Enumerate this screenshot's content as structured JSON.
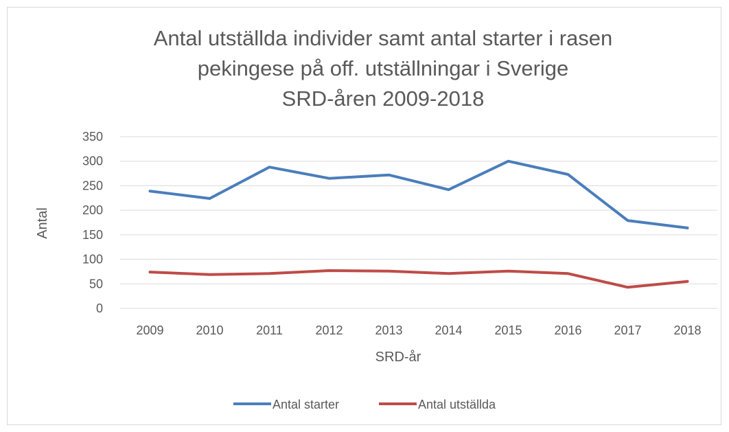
{
  "chart_data": {
    "type": "line",
    "title": [
      "Antal utställda individer samt antal starter i rasen",
      "pekingese på off. utställningar i Sverige",
      "SRD-åren 2009-2018"
    ],
    "x_label": "SRD-år",
    "y_label": "Antal",
    "categories": [
      "2009",
      "2010",
      "2011",
      "2012",
      "2013",
      "2014",
      "2015",
      "2016",
      "2017",
      "2018"
    ],
    "series": [
      {
        "name": "Antal starter",
        "color": "#4a7ebb",
        "values": [
          239,
          224,
          288,
          265,
          272,
          242,
          300,
          273,
          179,
          164
        ]
      },
      {
        "name": "Antal utställda",
        "color": "#be4b48",
        "values": [
          74,
          69,
          71,
          77,
          76,
          71,
          76,
          71,
          43,
          55
        ]
      }
    ],
    "ylim": [
      0,
      350
    ],
    "yticks": [
      0,
      50,
      100,
      150,
      200,
      250,
      300,
      350
    ],
    "grid": true,
    "legend": "bottom"
  }
}
